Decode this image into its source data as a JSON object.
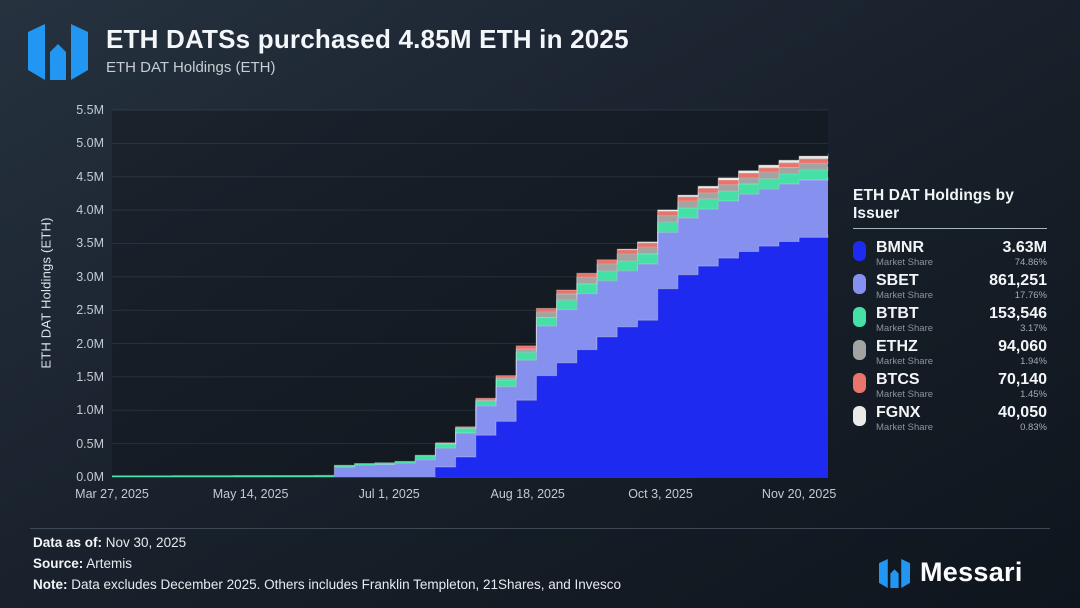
{
  "header": {
    "title": "ETH DATSs purchased 4.85M ETH in 2025",
    "subtitle": "ETH DAT Holdings (ETH)"
  },
  "brand": {
    "wordmark": "Messari",
    "logo_color": "#2196f3"
  },
  "legend": {
    "title": "ETH DAT Holdings by Issuer",
    "share_label": "Market Share",
    "items": [
      {
        "ticker": "BMNR",
        "value": "3.63M",
        "percent": "74.86%",
        "color": "#1e2af0"
      },
      {
        "ticker": "SBET",
        "value": "861,251",
        "percent": "17.76%",
        "color": "#8691ef"
      },
      {
        "ticker": "BTBT",
        "value": "153,546",
        "percent": "3.17%",
        "color": "#44e0a6"
      },
      {
        "ticker": "ETHZ",
        "value": "94,060",
        "percent": "1.94%",
        "color": "#a3a4a2"
      },
      {
        "ticker": "BTCS",
        "value": "70,140",
        "percent": "1.45%",
        "color": "#e8746c"
      },
      {
        "ticker": "FGNX",
        "value": "40,050",
        "percent": "0.83%",
        "color": "#eceae6"
      }
    ]
  },
  "footer": {
    "data_as_of_label": "Data as of:",
    "data_as_of": " Nov 30, 2025",
    "source_label": "Source:",
    "source": " Artemis",
    "note_label": "Note:",
    "note": " Data excludes December 2025. Others includes Franklin Templeton, 21Shares, and Invesco"
  },
  "chart_data": {
    "type": "area",
    "stacked": true,
    "interpolation": "step-after",
    "title": "ETH DATSs purchased 4.85M ETH in 2025",
    "xlabel": "",
    "ylabel": "ETH DAT Holdings (ETH)",
    "ylim_ETH": [
      0,
      5500000
    ],
    "grid": true,
    "legend_position": "right",
    "x_start": "Mar 27, 2025",
    "x_end": "Nov 30, 2025",
    "total_days": 248,
    "y_ticks": [
      "0.0M",
      "0.5M",
      "1.0M",
      "1.5M",
      "2.0M",
      "2.5M",
      "3.0M",
      "3.5M",
      "4.0M",
      "4.5M",
      "5.0M",
      "5.5M"
    ],
    "x_ticks": [
      {
        "label": "Mar 27, 2025",
        "day": 0
      },
      {
        "label": "May 14, 2025",
        "day": 48
      },
      {
        "label": "Jul 1, 2025",
        "day": 96
      },
      {
        "label": "Aug 18, 2025",
        "day": 144
      },
      {
        "label": "Oct 3, 2025",
        "day": 190
      },
      {
        "label": "Nov 20, 2025",
        "day": 238
      }
    ],
    "x_days": [
      0,
      7,
      14,
      21,
      28,
      35,
      42,
      49,
      56,
      63,
      70,
      77,
      84,
      91,
      98,
      105,
      112,
      119,
      126,
      133,
      140,
      147,
      154,
      161,
      168,
      175,
      182,
      189,
      196,
      203,
      210,
      217,
      224,
      231,
      238,
      248
    ],
    "series": [
      {
        "name": "BMNR",
        "color": "#1e2af0",
        "final_holdings": "3.63M",
        "market_share": "74.86%",
        "values_kETH": [
          0,
          0,
          0,
          0,
          0,
          0,
          0,
          0,
          0,
          0,
          0,
          0,
          0,
          0,
          0,
          0,
          150,
          300,
          625,
          833,
          1150,
          1520,
          1710,
          1910,
          2100,
          2250,
          2350,
          2820,
          3030,
          3160,
          3280,
          3380,
          3460,
          3530,
          3590,
          3630
        ]
      },
      {
        "name": "SBET",
        "color": "#8691ef",
        "final_holdings": "861,251",
        "market_share": "17.76%",
        "values_kETH": [
          0,
          0,
          0,
          0,
          0,
          0,
          0,
          0,
          0,
          0,
          0,
          150,
          176,
          188,
          205,
          258,
          280,
          360,
          440,
          522,
          599,
          741,
          798,
          838,
          840,
          840,
          840,
          845,
          850,
          852,
          855,
          857,
          858,
          860,
          861,
          861
        ]
      },
      {
        "name": "BTBT",
        "color": "#44e0a6",
        "final_holdings": "153,546",
        "market_share": "3.17%",
        "values_kETH": [
          20,
          20,
          20,
          21,
          21,
          21,
          22,
          22,
          23,
          23,
          24,
          25,
          26,
          27,
          29,
          61,
          65,
          68,
          72,
          100,
          120,
          130,
          140,
          145,
          150,
          150,
          152,
          152,
          153,
          153,
          153,
          154,
          154,
          154,
          154,
          154
        ]
      },
      {
        "name": "ETHZ",
        "color": "#a3a4a2",
        "final_holdings": "94,060",
        "market_share": "1.94%",
        "values_kETH": [
          0,
          0,
          0,
          0,
          0,
          0,
          0,
          0,
          0,
          0,
          0,
          0,
          0,
          0,
          0,
          6,
          8,
          10,
          15,
          30,
          50,
          80,
          95,
          98,
          100,
          100,
          100,
          100,
          100,
          94,
          94,
          94,
          94,
          94,
          94,
          94
        ]
      },
      {
        "name": "BTCS",
        "color": "#e8746c",
        "final_holdings": "70,140",
        "market_share": "1.45%",
        "values_kETH": [
          0,
          0,
          0,
          0,
          0,
          0,
          0,
          0,
          0,
          0,
          0,
          0,
          0,
          0,
          0,
          0,
          10,
          15,
          29,
          35,
          45,
          55,
          60,
          63,
          65,
          65,
          66,
          66,
          67,
          68,
          69,
          70,
          70,
          70,
          70,
          70
        ]
      },
      {
        "name": "FGNX",
        "color": "#eceae6",
        "final_holdings": "40,050",
        "market_share": "0.83%",
        "values_kETH": [
          0,
          0,
          0,
          0,
          0,
          0,
          0,
          0,
          0,
          0,
          0,
          0,
          0,
          0,
          0,
          0,
          0,
          0,
          0,
          0,
          0,
          0,
          0,
          0,
          0,
          10,
          15,
          20,
          25,
          30,
          32,
          35,
          38,
          40,
          40,
          40
        ]
      }
    ]
  }
}
